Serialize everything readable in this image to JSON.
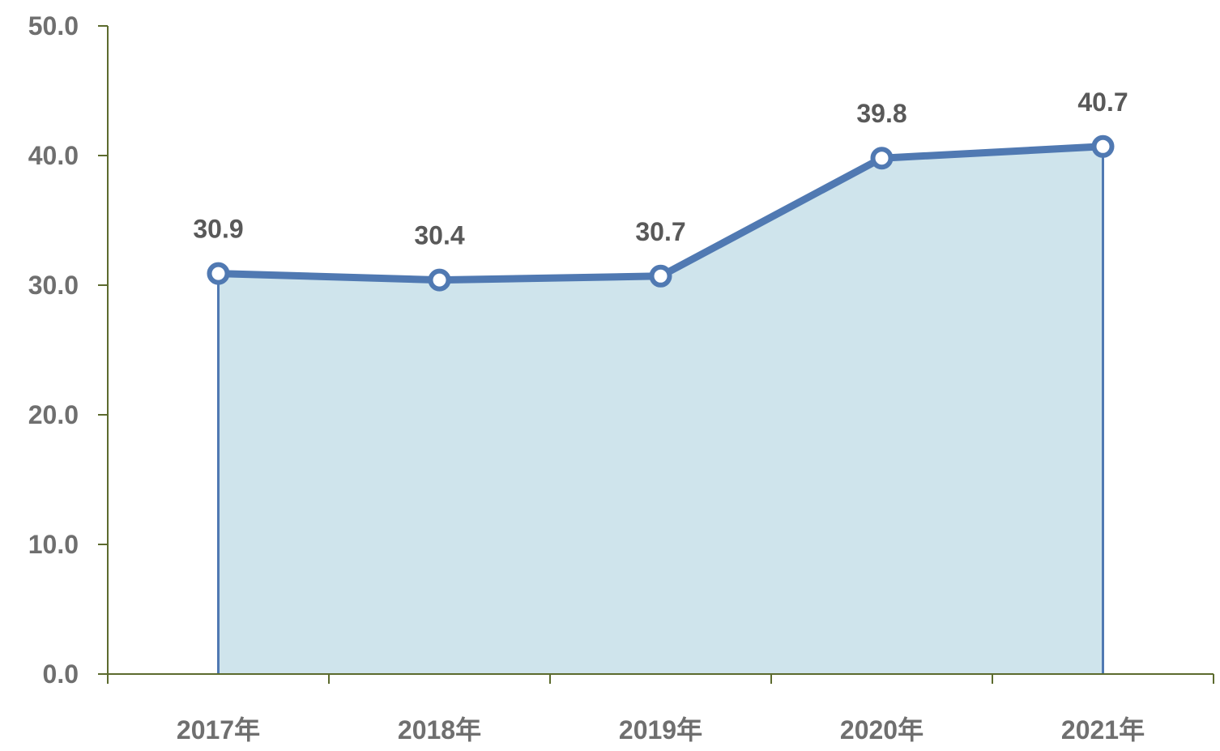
{
  "chart_data": {
    "type": "area",
    "categories": [
      "2017年",
      "2018年",
      "2019年",
      "2020年",
      "2021年"
    ],
    "series": [
      {
        "values": [
          30.9,
          30.4,
          30.7,
          39.8,
          40.7
        ]
      }
    ],
    "data_labels": [
      "30.9",
      "30.4",
      "30.7",
      "39.8",
      "40.7"
    ],
    "y_ticks": [
      "0.0",
      "10.0",
      "20.0",
      "30.0",
      "40.0",
      "50.0"
    ],
    "ylim": [
      0,
      50
    ],
    "grid": false,
    "legend": "none",
    "colors": {
      "line": "#5079b2",
      "fill": "#cfe4ec",
      "axis": "#5c6b2e",
      "marker_fill": "#ffffff"
    }
  }
}
